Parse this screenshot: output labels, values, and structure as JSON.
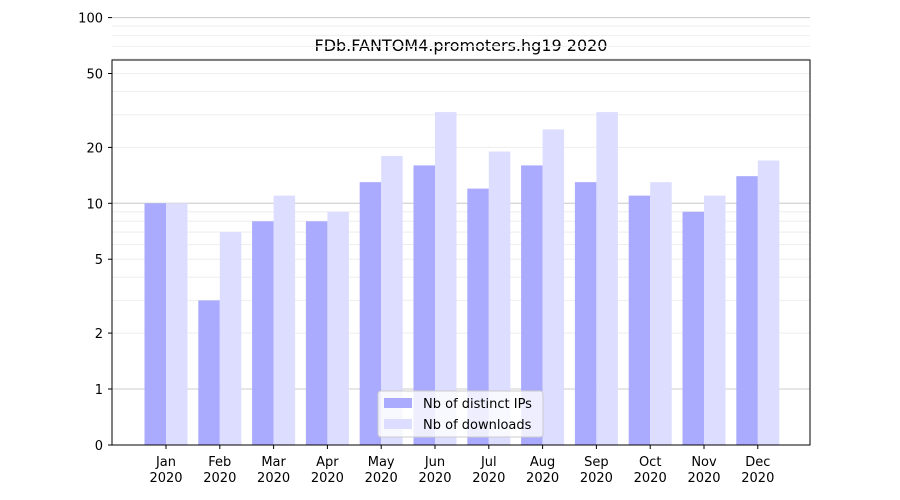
{
  "chart_data": {
    "type": "bar",
    "title": "FDb.FANTOM4.promoters.hg19 2020",
    "xlabel": "",
    "ylabel": "",
    "y_scale": "symlog",
    "ylim": [
      0,
      110
    ],
    "y_ticks": [
      0,
      1,
      2,
      5,
      10,
      20,
      50,
      100
    ],
    "grid": "horizontal",
    "legend": "bottom-center",
    "categories": [
      "Jan\n2020",
      "Feb\n2020",
      "Mar\n2020",
      "Apr\n2020",
      "May\n2020",
      "Jun\n2020",
      "Jul\n2020",
      "Aug\n2020",
      "Sep\n2020",
      "Oct\n2020",
      "Nov\n2020",
      "Dec\n2020"
    ],
    "series": [
      {
        "name": "Nb of distinct IPs",
        "color": "#aaaaff",
        "values": [
          10,
          3,
          8,
          8,
          13,
          16,
          12,
          16,
          13,
          11,
          9,
          14
        ]
      },
      {
        "name": "Nb of downloads",
        "color": "#ddddff",
        "values": [
          10,
          7,
          11,
          9,
          18,
          31,
          19,
          25,
          31,
          13,
          11,
          17
        ]
      }
    ]
  }
}
